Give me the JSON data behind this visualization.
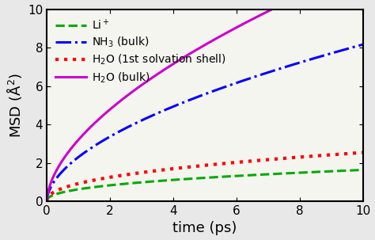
{
  "title": "",
  "xlabel": "time (ps)",
  "ylabel": "MSD (Å$^2$)",
  "xlim": [
    0,
    10
  ],
  "ylim": [
    0,
    10
  ],
  "xticks": [
    0,
    2,
    4,
    6,
    8,
    10
  ],
  "yticks": [
    0,
    2,
    4,
    6,
    8,
    10
  ],
  "lines": [
    {
      "label": "Li$^+$",
      "color": "#00aa00",
      "linestyle": "--",
      "linewidth": 2.2,
      "A": 0.62,
      "alpha_exp": 0.42
    },
    {
      "label": "NH$_3$ (bulk)",
      "color": "#0000ff",
      "linestyle": "-.",
      "linewidth": 2.2,
      "A": 2.3,
      "alpha_exp": 0.55
    },
    {
      "label": "H$_2$O (1st solvation shell)",
      "color": "#ff0000",
      "linestyle": ":",
      "linewidth": 3.0,
      "A": 0.92,
      "alpha_exp": 0.44
    },
    {
      "label": "H$_2$O (bulk)",
      "color": "#cc00cc",
      "linestyle": "-",
      "linewidth": 2.2,
      "A": 3.2,
      "alpha_exp": 0.58
    }
  ],
  "legend_fontsize": 10,
  "tick_fontsize": 11,
  "label_fontsize": 13,
  "bg_color": "#e8e8e8",
  "plot_bg_color": "#f5f5f0"
}
